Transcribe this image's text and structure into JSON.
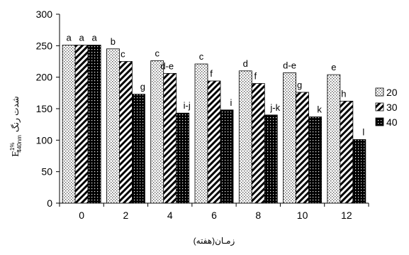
{
  "chart_data": {
    "type": "bar",
    "categories": [
      "0",
      "2",
      "4",
      "6",
      "8",
      "10",
      "12"
    ],
    "xlabel": "زمـان(هفته)",
    "ylabel": {
      "main": "E",
      "superscript": "1%",
      "subscript": "440nm",
      "text": "شدت رنگ"
    },
    "ylim": [
      0,
      300
    ],
    "yticks": [
      0,
      50,
      100,
      150,
      200,
      250,
      300
    ],
    "grid": false,
    "legend_position": "right",
    "series": [
      {
        "name": "20",
        "pattern": "dotted-light",
        "values": [
          251,
          245,
          226,
          221,
          210,
          207,
          204
        ],
        "labels": [
          "a",
          "b",
          "c",
          "c",
          "d",
          "d-e",
          "e"
        ]
      },
      {
        "name": "30",
        "pattern": "diagonal-hatch",
        "values": [
          251,
          225,
          206,
          194,
          190,
          176,
          162
        ],
        "labels": [
          "a",
          "c",
          "d-e",
          "f",
          "f",
          "g",
          "h"
        ]
      },
      {
        "name": "40",
        "pattern": "dark-dotted",
        "values": [
          251,
          173,
          143,
          148,
          140,
          137,
          101
        ],
        "labels": [
          "a",
          "g",
          "i-j",
          "i",
          "j-k",
          "k",
          "l"
        ]
      }
    ]
  }
}
